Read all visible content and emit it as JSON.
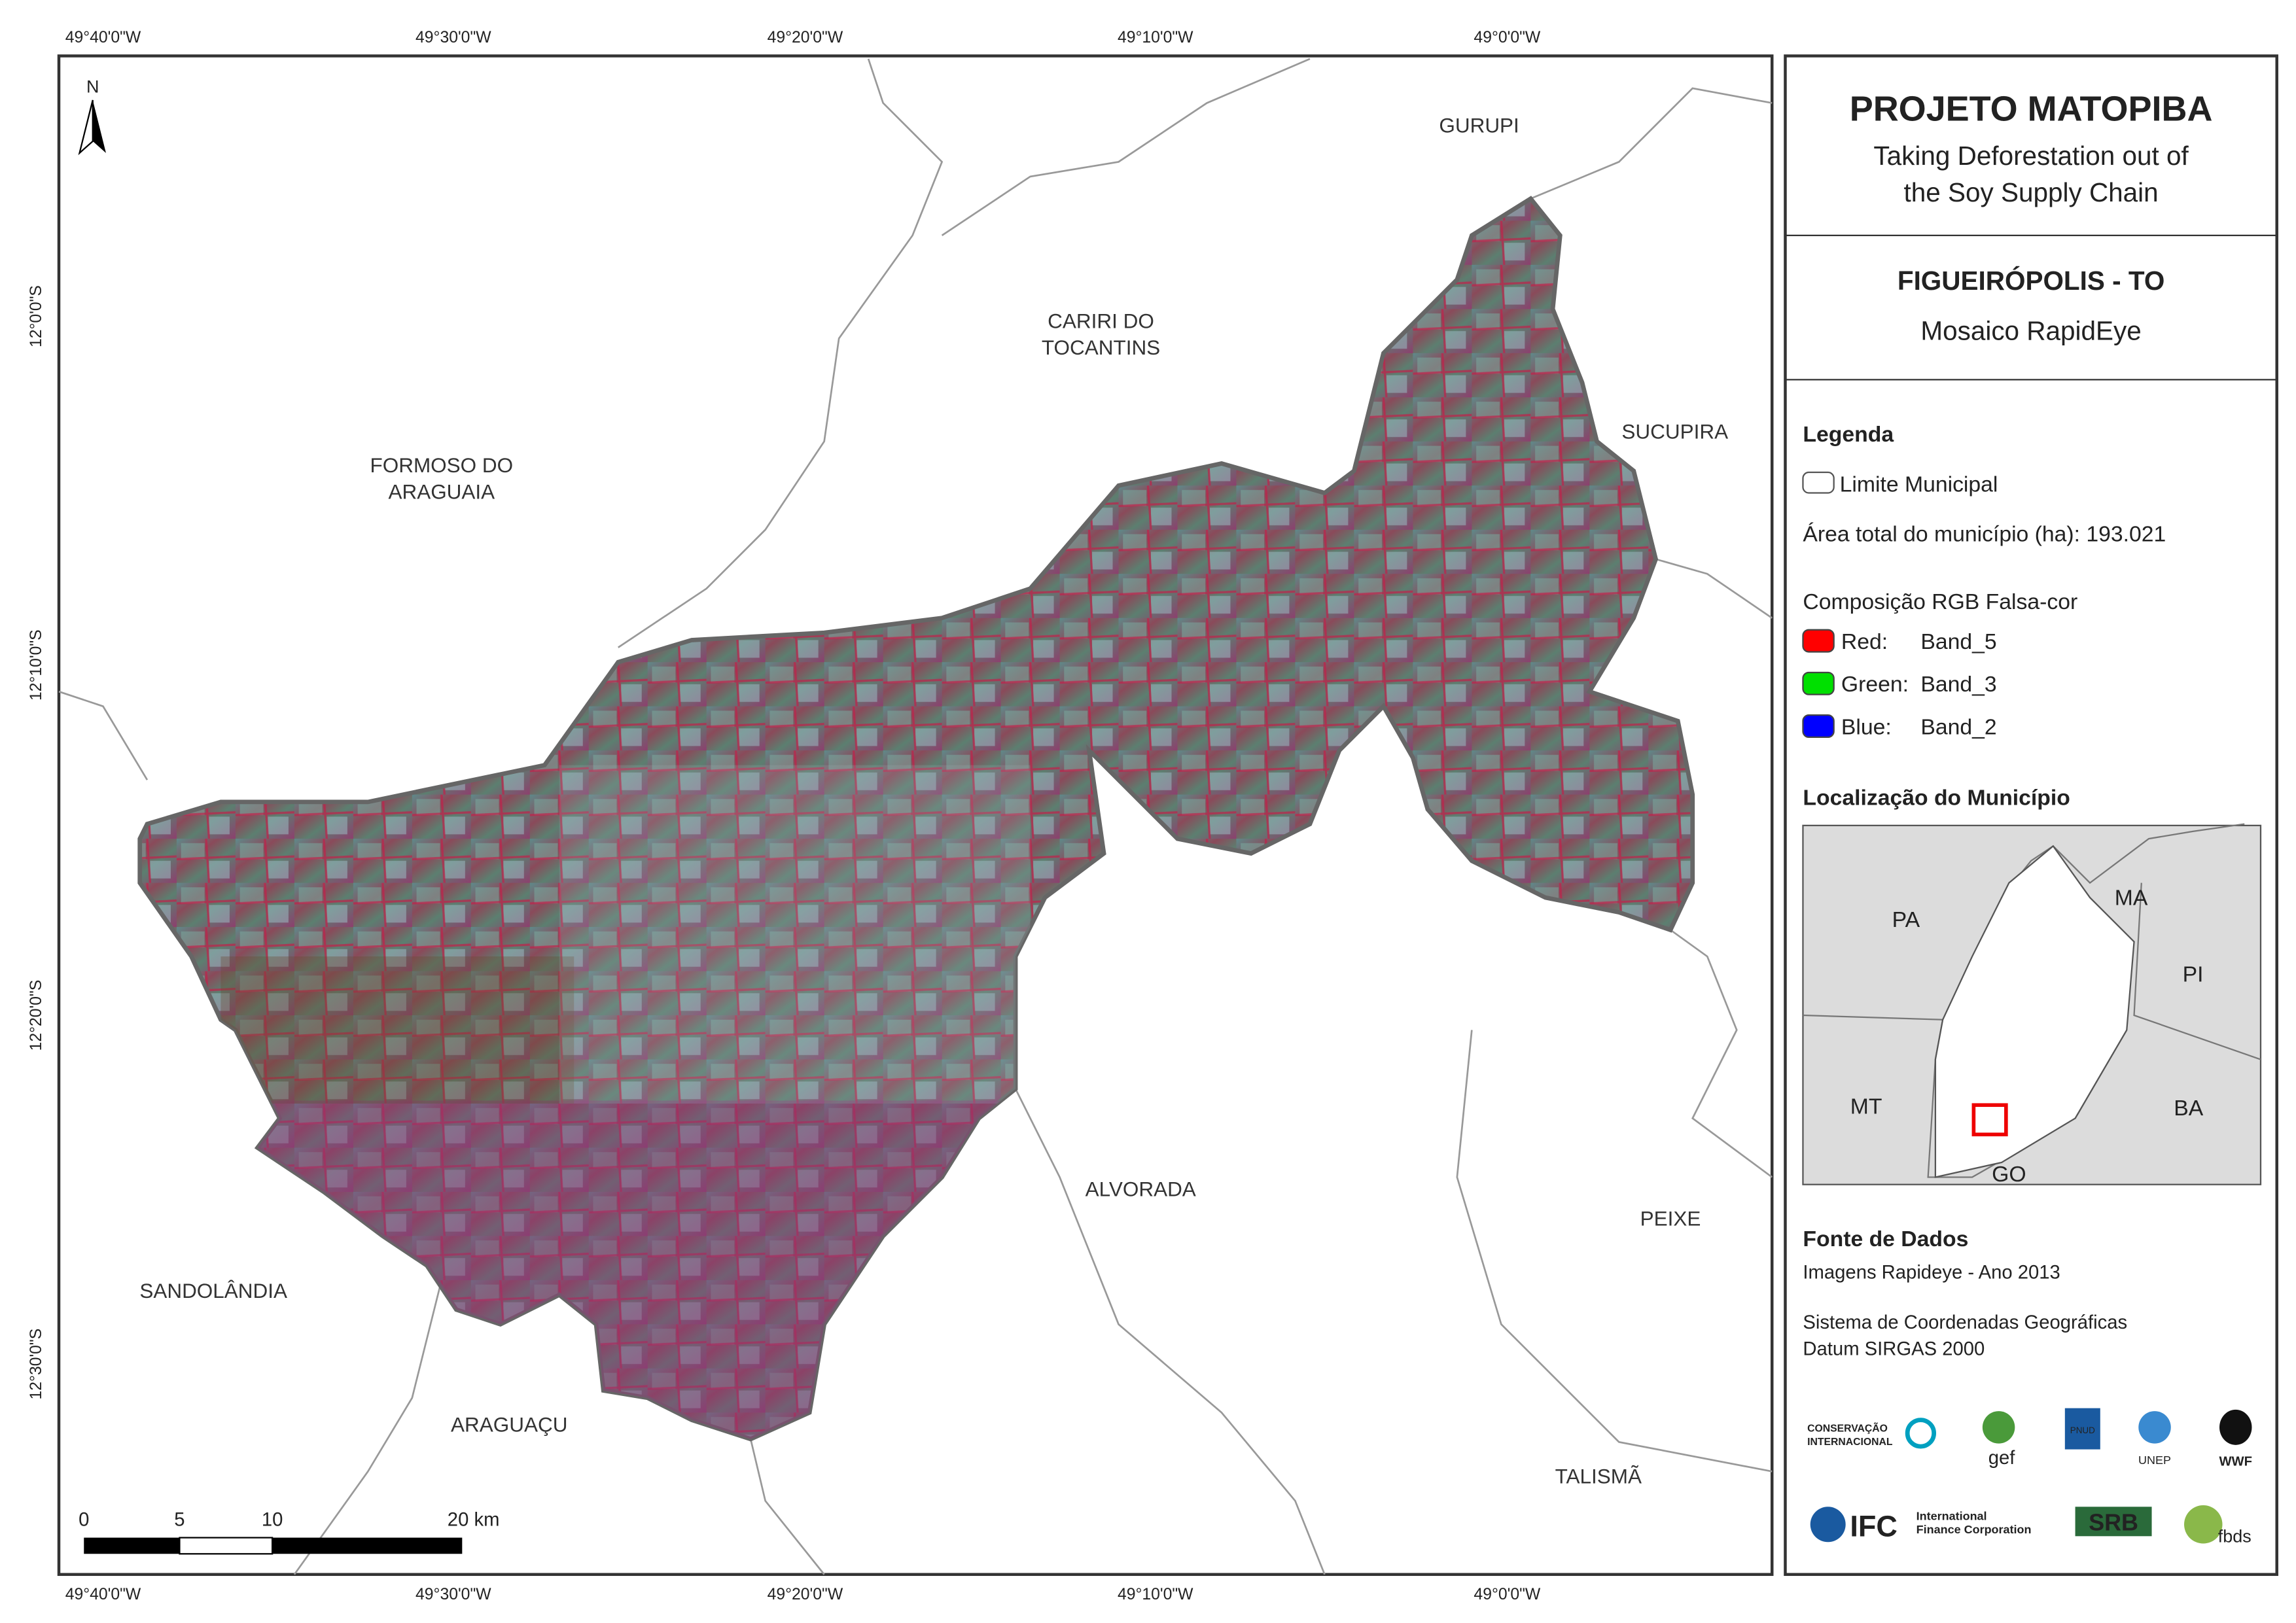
{
  "coordinates": {
    "top": [
      "49°40'0\"W",
      "49°30'0\"W",
      "49°20'0\"W",
      "49°10'0\"W",
      "49°0'0\"W"
    ],
    "bottom": [
      "49°40'0\"W",
      "49°30'0\"W",
      "49°20'0\"W",
      "49°10'0\"W",
      "49°0'0\"W"
    ],
    "left": [
      "12°0'0\"S",
      "12°10'0\"S",
      "12°20'0\"S",
      "12°30'0\"S"
    ]
  },
  "places": [
    "GURUPI",
    "CARIRI DO",
    "TOCANTINS",
    "SUCUPIRA",
    "FORMOSO DO",
    "ARAGUAIA",
    "ALVORADA",
    "PEIXE",
    "SANDOLÂNDIA",
    "ARAGUAÇU",
    "TALISMÃ"
  ],
  "north": "N",
  "scale_bar": {
    "labels": [
      "0",
      "5",
      "10",
      "20 km"
    ]
  },
  "header": {
    "title": "PROJETO MATOPIBA",
    "subtitle": [
      "Taking Deforestation out of",
      "the Soy Supply Chain"
    ]
  },
  "map_title": {
    "name": "FIGUEIRÓPOLIS - TO",
    "subtitle": "Mosaico RapidEye"
  },
  "legend": {
    "title": "Legenda",
    "boundary": "Limite Municipal",
    "area": "Área total do município (ha): 193.021",
    "composition": "Composição RGB Falsa-cor",
    "bands": [
      {
        "channel": "Red:",
        "band": "Band_5",
        "color": "#ff0000"
      },
      {
        "channel": "Green:",
        "band": "Band_3",
        "color": "#00e000"
      },
      {
        "channel": "Blue:",
        "band": "Band_2",
        "color": "#0000ff"
      }
    ]
  },
  "location": {
    "title": "Localização do Município",
    "states": [
      "PA",
      "MA",
      "PI",
      "MT",
      "BA",
      "GO"
    ]
  },
  "sources": {
    "title": "Fonte de Dados",
    "lines": [
      "Imagens Rapideye - Ano 2013",
      "Sistema de Coordenadas Geográficas",
      "Datum SIRGAS 2000"
    ]
  },
  "logos": [
    "CONSERVAÇÃO",
    "INTERNACIONAL",
    "gef",
    "PNUD",
    "UNEP",
    "WWF",
    "IFC",
    "International",
    "Finance Corporation",
    "SRB",
    "fbds"
  ]
}
